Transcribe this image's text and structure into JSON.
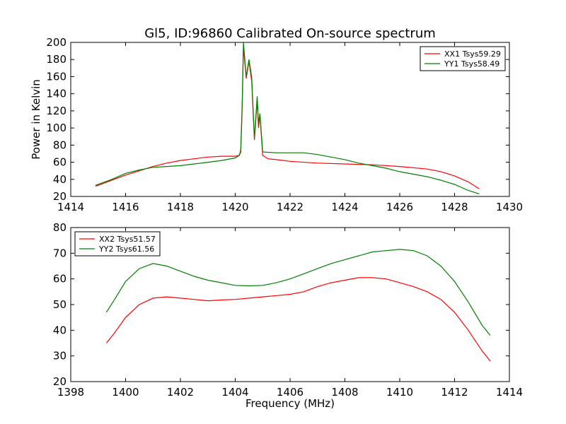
{
  "chart_data": [
    {
      "type": "line",
      "title": "Gl5, ID:96860 Calibrated On-source spectrum",
      "xlabel": "",
      "ylabel": "Power in Kelvin",
      "xlim": [
        1414,
        1430
      ],
      "ylim": [
        20,
        200
      ],
      "xticks": [
        1414,
        1416,
        1418,
        1420,
        1422,
        1424,
        1426,
        1428,
        1430
      ],
      "yticks": [
        20,
        40,
        60,
        80,
        100,
        120,
        140,
        160,
        180,
        200
      ],
      "grid": false,
      "legend_position": "top-right",
      "series": [
        {
          "name": "XX1 Tsys59.29",
          "color": "#ff0000",
          "points": [
            [
              1414.9,
              32
            ],
            [
              1415.5,
              39
            ],
            [
              1416,
              45
            ],
            [
              1416.5,
              50
            ],
            [
              1417,
              55
            ],
            [
              1417.5,
              59
            ],
            [
              1418,
              62
            ],
            [
              1418.5,
              64
            ],
            [
              1419,
              66
            ],
            [
              1419.5,
              67
            ],
            [
              1420,
              67
            ],
            [
              1420.15,
              68
            ],
            [
              1420.2,
              72
            ],
            [
              1420.25,
              120
            ],
            [
              1420.3,
              195
            ],
            [
              1420.4,
              158
            ],
            [
              1420.5,
              178
            ],
            [
              1420.6,
              155
            ],
            [
              1420.7,
              86
            ],
            [
              1420.8,
              132
            ],
            [
              1420.85,
              100
            ],
            [
              1420.9,
              115
            ],
            [
              1421.0,
              68
            ],
            [
              1421.2,
              64
            ],
            [
              1421.5,
              63
            ],
            [
              1422,
              61
            ],
            [
              1423,
              59
            ],
            [
              1424,
              58
            ],
            [
              1425,
              57
            ],
            [
              1426,
              55
            ],
            [
              1427,
              52
            ],
            [
              1427.5,
              49
            ],
            [
              1428,
              44
            ],
            [
              1428.5,
              37
            ],
            [
              1428.9,
              29
            ]
          ]
        },
        {
          "name": "YY1 Tsys58.49",
          "color": "#008000",
          "points": [
            [
              1414.9,
              33
            ],
            [
              1415.5,
              40
            ],
            [
              1416,
              47
            ],
            [
              1416.5,
              51
            ],
            [
              1417,
              54
            ],
            [
              1417.5,
              55
            ],
            [
              1418,
              56
            ],
            [
              1418.5,
              58
            ],
            [
              1419,
              60
            ],
            [
              1419.5,
              62
            ],
            [
              1420,
              65
            ],
            [
              1420.15,
              68
            ],
            [
              1420.2,
              75
            ],
            [
              1420.25,
              125
            ],
            [
              1420.3,
              200
            ],
            [
              1420.4,
              160
            ],
            [
              1420.5,
              180
            ],
            [
              1420.6,
              160
            ],
            [
              1420.7,
              88
            ],
            [
              1420.8,
              137
            ],
            [
              1420.85,
              105
            ],
            [
              1420.9,
              117
            ],
            [
              1421.0,
              72
            ],
            [
              1421.5,
              71
            ],
            [
              1422,
              71
            ],
            [
              1422.5,
              71
            ],
            [
              1423,
              69
            ],
            [
              1423.5,
              66
            ],
            [
              1424,
              63
            ],
            [
              1424.5,
              59
            ],
            [
              1425,
              56
            ],
            [
              1425.5,
              53
            ],
            [
              1426,
              49
            ],
            [
              1426.5,
              46
            ],
            [
              1427,
              43
            ],
            [
              1427.5,
              39
            ],
            [
              1428,
              34
            ],
            [
              1428.5,
              27
            ],
            [
              1428.9,
              23
            ]
          ]
        }
      ]
    },
    {
      "type": "line",
      "title": "",
      "xlabel": "Frequency (MHz)",
      "ylabel": "",
      "xlim": [
        1398,
        1414
      ],
      "ylim": [
        20,
        80
      ],
      "xticks": [
        1398,
        1400,
        1402,
        1404,
        1406,
        1408,
        1410,
        1412,
        1414
      ],
      "yticks": [
        20,
        30,
        40,
        50,
        60,
        70,
        80
      ],
      "grid": false,
      "legend_position": "top-left",
      "series": [
        {
          "name": "XX2 Tsys51.57",
          "color": "#ff0000",
          "points": [
            [
              1399.3,
              35
            ],
            [
              1399.6,
              39
            ],
            [
              1400,
              45
            ],
            [
              1400.5,
              50
            ],
            [
              1401,
              52.5
            ],
            [
              1401.5,
              53
            ],
            [
              1402,
              52.5
            ],
            [
              1402.5,
              52
            ],
            [
              1403,
              51.5
            ],
            [
              1403.5,
              51.8
            ],
            [
              1404,
              52
            ],
            [
              1404.5,
              52.5
            ],
            [
              1405,
              53
            ],
            [
              1405.5,
              53.5
            ],
            [
              1406,
              54
            ],
            [
              1406.5,
              55
            ],
            [
              1407,
              57
            ],
            [
              1407.5,
              58.5
            ],
            [
              1408,
              59.5
            ],
            [
              1408.5,
              60.5
            ],
            [
              1409,
              60.5
            ],
            [
              1409.5,
              60
            ],
            [
              1410,
              58.5
            ],
            [
              1410.5,
              57
            ],
            [
              1411,
              55
            ],
            [
              1411.5,
              52
            ],
            [
              1412,
              47
            ],
            [
              1412.5,
              40
            ],
            [
              1413,
              32
            ],
            [
              1413.3,
              28
            ]
          ]
        },
        {
          "name": "YY2 Tsys61.56",
          "color": "#008000",
          "points": [
            [
              1399.3,
              47
            ],
            [
              1399.6,
              52
            ],
            [
              1400,
              59
            ],
            [
              1400.5,
              64
            ],
            [
              1401,
              66
            ],
            [
              1401.5,
              65
            ],
            [
              1402,
              63
            ],
            [
              1402.5,
              61
            ],
            [
              1403,
              59.5
            ],
            [
              1403.5,
              58.5
            ],
            [
              1404,
              57.5
            ],
            [
              1404.5,
              57.3
            ],
            [
              1405,
              57.5
            ],
            [
              1405.5,
              58.5
            ],
            [
              1406,
              60
            ],
            [
              1406.5,
              62
            ],
            [
              1407,
              64
            ],
            [
              1407.5,
              66
            ],
            [
              1408,
              67.5
            ],
            [
              1408.5,
              69
            ],
            [
              1409,
              70.5
            ],
            [
              1409.5,
              71
            ],
            [
              1410,
              71.5
            ],
            [
              1410.5,
              71
            ],
            [
              1411,
              69
            ],
            [
              1411.5,
              65
            ],
            [
              1412,
              59
            ],
            [
              1412.5,
              51
            ],
            [
              1413,
              42
            ],
            [
              1413.3,
              38
            ]
          ]
        }
      ]
    }
  ]
}
